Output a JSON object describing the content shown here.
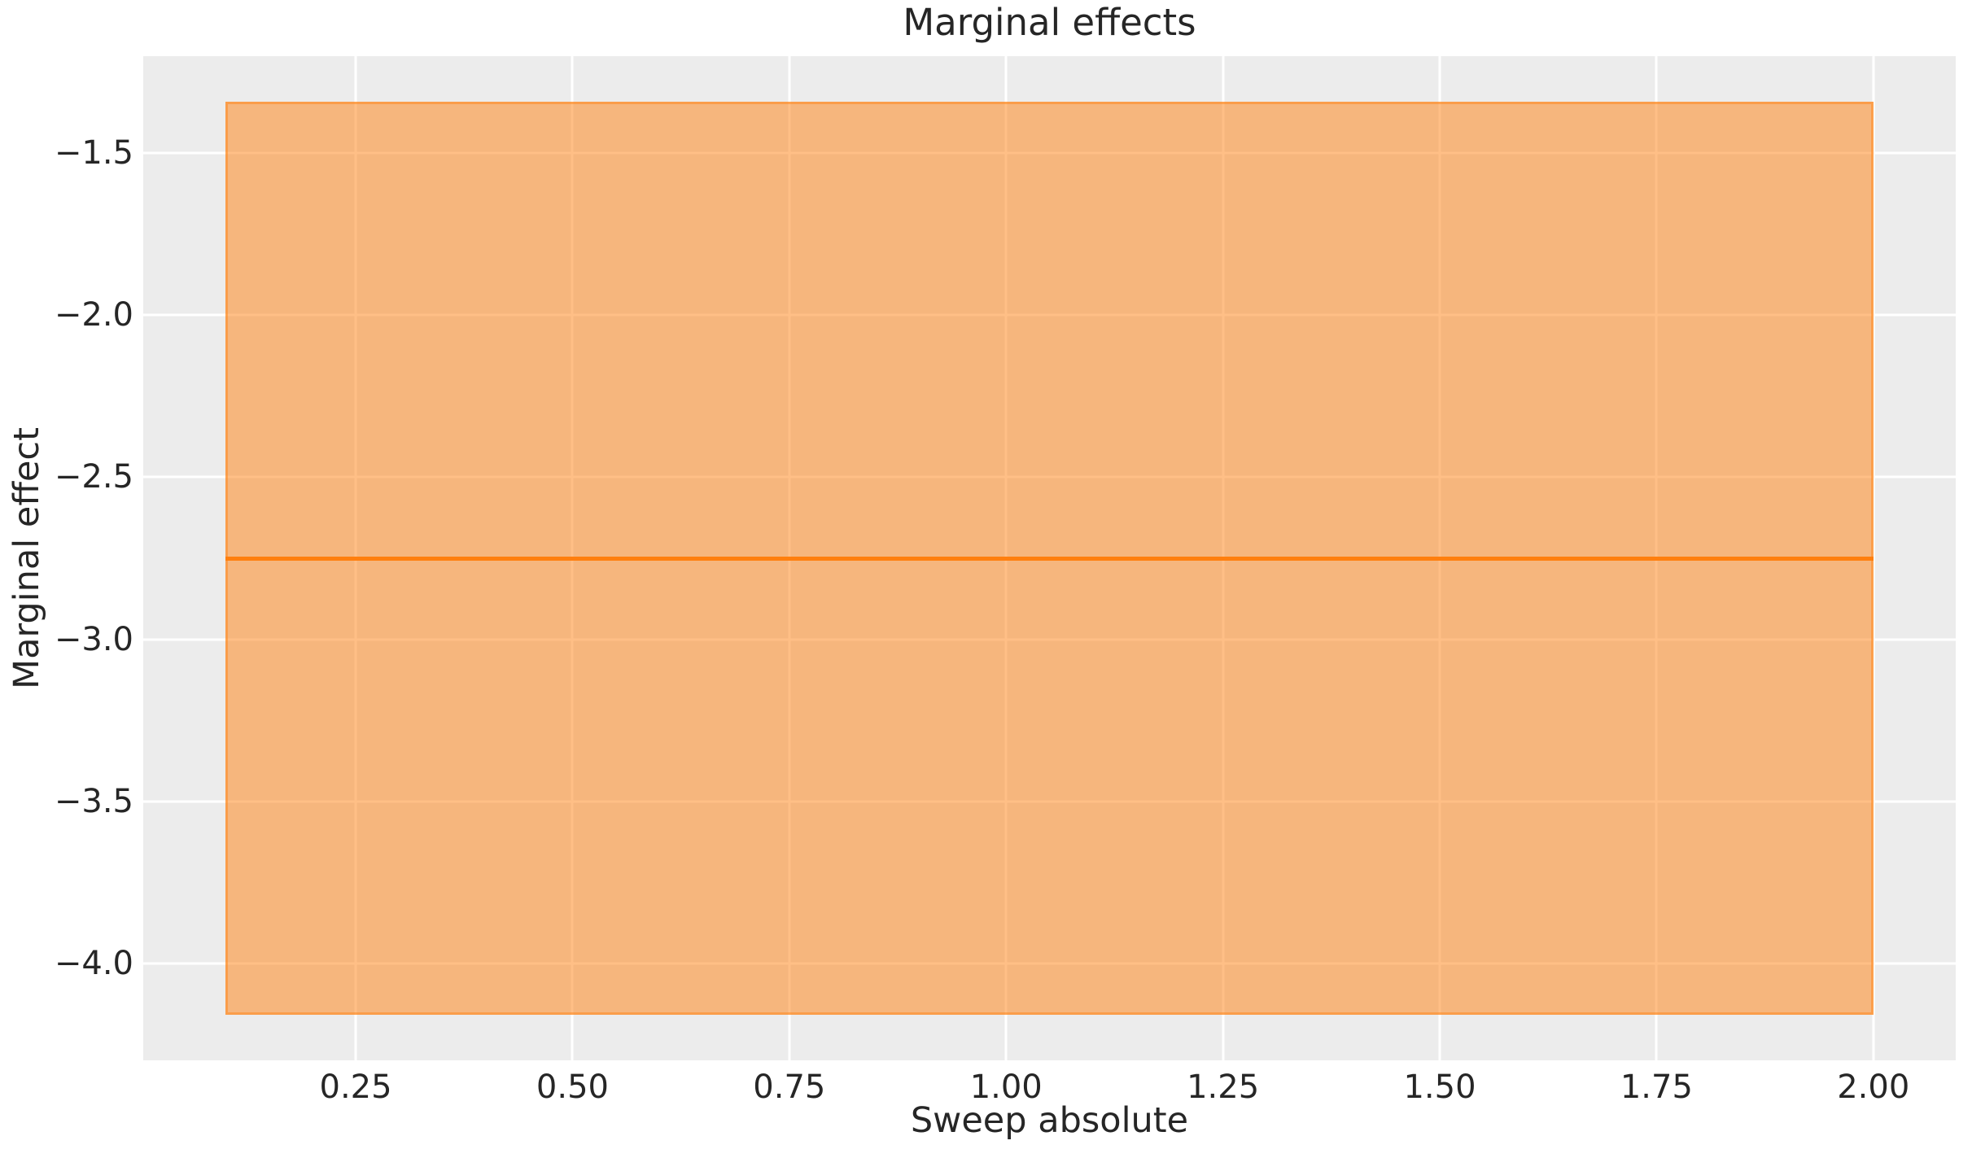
{
  "chart_data": {
    "type": "line",
    "title": "Marginal effects",
    "xlabel": "Sweep absolute",
    "ylabel": "Marginal effect",
    "series": [
      {
        "name": "marginal-effect-mean",
        "x": [
          0.1,
          2.0
        ],
        "y": [
          -2.75,
          -2.75
        ]
      }
    ],
    "band": {
      "name": "confidence-interval",
      "x": [
        0.1,
        2.0
      ],
      "y_low": -4.16,
      "y_high": -1.34
    },
    "xlim": [
      0.005,
      2.095
    ],
    "ylim": [
      -4.3,
      -1.2
    ],
    "xticks": [
      0.25,
      0.5,
      0.75,
      1.0,
      1.25,
      1.5,
      1.75,
      2.0
    ],
    "xtick_labels": [
      "0.25",
      "0.50",
      "0.75",
      "1.00",
      "1.25",
      "1.50",
      "1.75",
      "2.00"
    ],
    "yticks": [
      -1.5,
      -2.0,
      -2.5,
      -3.0,
      -3.5,
      -4.0
    ],
    "ytick_labels": [
      "−1.5",
      "−2.0",
      "−2.5",
      "−3.0",
      "−3.5",
      "−4.0"
    ],
    "grid": true,
    "legend": false,
    "colors": {
      "figure_bg": "#ffffff",
      "axes_bg": "#ececec",
      "grid": "#ffffff",
      "line": "#ff7f0e",
      "band_fill": "rgba(255,127,14,0.5)",
      "text": "#262626"
    }
  }
}
